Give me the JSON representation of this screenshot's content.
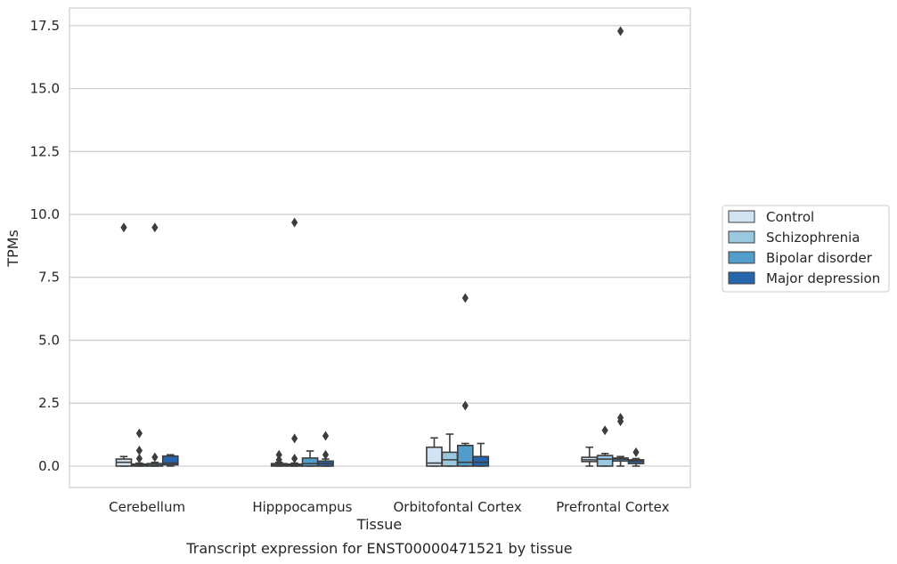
{
  "chart_data": {
    "type": "box",
    "title": "",
    "caption": "Transcript expression for ENST00000471521 by tissue",
    "xlabel": "Tissue",
    "ylabel": "TPMs",
    "ylim": [
      -0.85,
      18.2
    ],
    "yticks": [
      0.0,
      2.5,
      5.0,
      7.5,
      10.0,
      12.5,
      15.0,
      17.5
    ],
    "ytick_labels": [
      "0.0",
      "2.5",
      "5.0",
      "7.5",
      "10.0",
      "12.5",
      "15.0",
      "17.5"
    ],
    "grid": "horizontal",
    "legend_position": "right",
    "categories": [
      "Cerebellum",
      "Hipppocampus",
      "Orbitofontal Cortex",
      "Prefrontal Cortex"
    ],
    "series": [
      {
        "name": "Control",
        "color": "#d2e3f3",
        "boxes": [
          {
            "whislo": 0.0,
            "q1": 0.0,
            "med": 0.15,
            "q3": 0.28,
            "whishi": 0.38,
            "fliers": [
              9.48
            ]
          },
          {
            "whislo": 0.0,
            "q1": 0.0,
            "med": 0.05,
            "q3": 0.1,
            "whishi": 0.15,
            "fliers": [
              0.25,
              0.45
            ]
          },
          {
            "whislo": 0.0,
            "q1": 0.0,
            "med": 0.12,
            "q3": 0.75,
            "whishi": 1.12,
            "fliers": []
          },
          {
            "whislo": 0.0,
            "q1": 0.18,
            "med": 0.25,
            "q3": 0.35,
            "whishi": 0.75,
            "fliers": []
          }
        ]
      },
      {
        "name": "Schizophrenia",
        "color": "#9ac8e0",
        "boxes": [
          {
            "whislo": 0.0,
            "q1": 0.0,
            "med": 0.03,
            "q3": 0.08,
            "whishi": 0.12,
            "fliers": [
              0.3,
              0.62,
              1.3
            ]
          },
          {
            "whislo": 0.0,
            "q1": 0.0,
            "med": 0.03,
            "q3": 0.08,
            "whishi": 0.12,
            "fliers": [
              0.3,
              1.1,
              9.68
            ]
          },
          {
            "whislo": 0.0,
            "q1": 0.0,
            "med": 0.25,
            "q3": 0.55,
            "whishi": 1.27,
            "fliers": []
          },
          {
            "whislo": 0.0,
            "q1": 0.0,
            "med": 0.28,
            "q3": 0.42,
            "whishi": 0.5,
            "fliers": [
              1.42
            ]
          }
        ]
      },
      {
        "name": "Bipolar disorder",
        "color": "#529dcb",
        "boxes": [
          {
            "whislo": 0.0,
            "q1": 0.0,
            "med": 0.03,
            "q3": 0.1,
            "whishi": 0.15,
            "fliers": [
              0.35,
              9.48
            ]
          },
          {
            "whislo": 0.0,
            "q1": 0.0,
            "med": 0.1,
            "q3": 0.32,
            "whishi": 0.6,
            "fliers": []
          },
          {
            "whislo": 0.0,
            "q1": 0.0,
            "med": 0.15,
            "q3": 0.82,
            "whishi": 0.9,
            "fliers": [
              2.4,
              6.68
            ]
          },
          {
            "whislo": 0.0,
            "q1": 0.2,
            "med": 0.28,
            "q3": 0.32,
            "whishi": 0.38,
            "fliers": [
              1.78,
              1.92,
              17.28
            ]
          }
        ]
      },
      {
        "name": "Major depression",
        "color": "#2666ad",
        "boxes": [
          {
            "whislo": 0.0,
            "q1": 0.05,
            "med": 0.12,
            "q3": 0.4,
            "whishi": 0.45,
            "fliers": []
          },
          {
            "whislo": 0.0,
            "q1": 0.0,
            "med": 0.1,
            "q3": 0.2,
            "whishi": 0.28,
            "fliers": [
              0.45,
              1.2
            ]
          },
          {
            "whislo": 0.0,
            "q1": 0.0,
            "med": 0.15,
            "q3": 0.38,
            "whishi": 0.9,
            "fliers": []
          },
          {
            "whislo": 0.0,
            "q1": 0.1,
            "med": 0.2,
            "q3": 0.25,
            "whishi": 0.3,
            "fliers": [
              0.55
            ]
          }
        ]
      }
    ]
  }
}
